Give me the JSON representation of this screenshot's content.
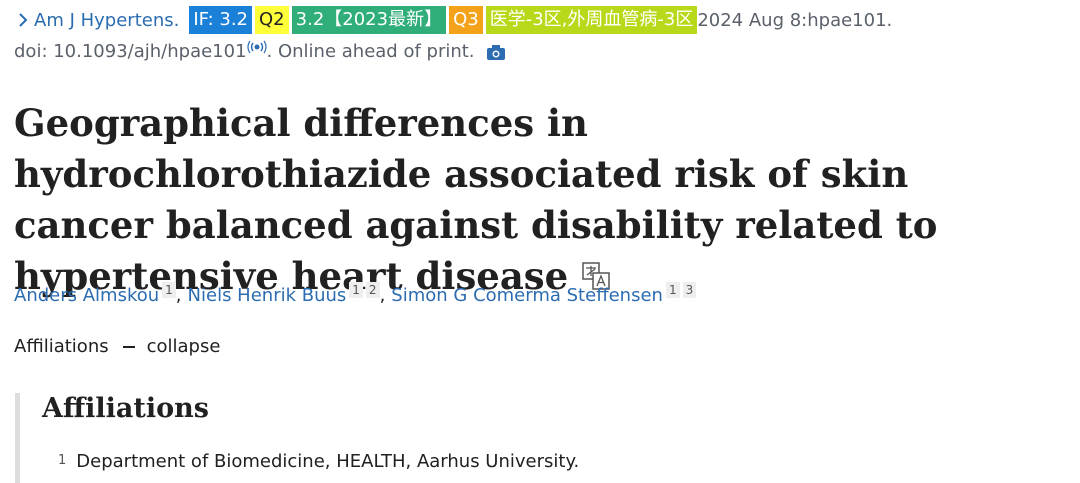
{
  "citation": {
    "journal": "Am J Hypertens.",
    "badges": [
      "IF: 3.2",
      "Q2",
      "3.2【2023最新】",
      "Q3",
      "医学-3区,外周血管病-3区"
    ],
    "date": "2024 Aug 8:hpae101.",
    "doi": "doi: 10.1093/ajh/hpae101",
    "status": ". Online ahead of print."
  },
  "title": "Geographical differences in hydrochlorothiazide associated risk of skin cancer balanced against disability related to hypertensive heart disease",
  "authors": [
    {
      "name": "Anders Almskou",
      "affiliations": [
        "1"
      ]
    },
    {
      "name": "Niels Henrik Buus",
      "affiliations": [
        "1",
        "2"
      ]
    },
    {
      "name": "Simon G Comerma Steffensen",
      "affiliations": [
        "1",
        "3"
      ]
    }
  ],
  "author_separator": ",",
  "affiliations_toggle": {
    "label": "Affiliations",
    "action": "collapse"
  },
  "affiliations": {
    "heading": "Affiliations",
    "items": [
      {
        "number": "1",
        "text": "Department of Biomedicine, HEALTH, Aarhus University."
      }
    ]
  }
}
